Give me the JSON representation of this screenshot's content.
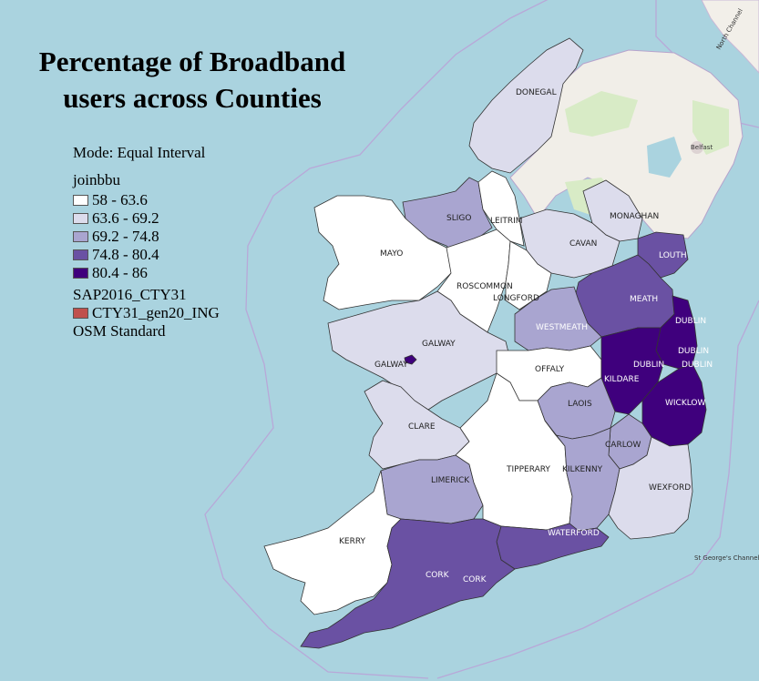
{
  "title": {
    "line1": "Percentage of Broadband",
    "line2": "users across Counties"
  },
  "legend": {
    "mode": "Mode: Equal Interval",
    "field": "joinbbu",
    "classes": [
      {
        "label": "58 - 63.6",
        "color": "#ffffff"
      },
      {
        "label": "63.6 - 69.2",
        "color": "#dcdcec"
      },
      {
        "label": "69.2 - 74.8",
        "color": "#a9a5d0"
      },
      {
        "label": "74.8 - 80.4",
        "color": "#6a51a3"
      },
      {
        "label": "80.4 - 86",
        "color": "#3f007d"
      }
    ],
    "layer": "SAP2016_CTY31",
    "layer_item": {
      "label": "CTY31_gen20_ING",
      "color": "#c0504d"
    },
    "basemap": "OSM Standard"
  },
  "counties": {
    "donegal": "DONEGAL",
    "sligo": "SLIGO",
    "leitrim": "LEITRIM",
    "mayo": "MAYO",
    "monaghan": "MONAGHAN",
    "cavan": "CAVAN",
    "louth": "LOUTH",
    "roscommon": "ROSCOMMON",
    "longford": "LONGFORD",
    "meath": "MEATH",
    "dublin1": "DUBLIN",
    "westmeath": "WESTMEATH",
    "galway": "GALWAY",
    "galway_city": "GALWAY",
    "dublin2": "DUBLIN",
    "dublin3": "DUBLIN",
    "dublin4": "DUBLIN",
    "offaly": "OFFALY",
    "kildare": "KILDARE",
    "laois": "LAOIS",
    "wicklow": "WICKLOW",
    "clare": "CLARE",
    "carlow": "CARLOW",
    "limerick": "LIMERICK",
    "tipperary": "TIPPERARY",
    "kilkenny": "KILKENNY",
    "wexford": "WEXFORD",
    "kerry": "KERRY",
    "waterford": "WATERFORD",
    "cork": "CORK",
    "cork_city": "CORK"
  },
  "basemap_labels": {
    "belfast": "Belfast",
    "north_channel": "North Channel",
    "st_georges": "St George's Channel"
  }
}
